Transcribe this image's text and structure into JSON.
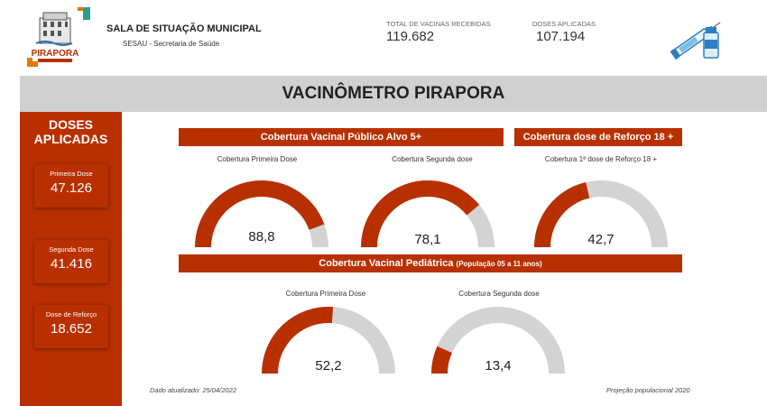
{
  "header": {
    "org_title": "SALA DE SITUAÇÃO MUNICIPAL",
    "org_sub": "SESAU - Secretaria de Saúde",
    "logo_text": "PIRAPORA",
    "total_label": "TOTAL DE VACINAS RECEBIDAS",
    "total_value": "119.682",
    "applied_label": "DOSES APLICADAS",
    "applied_value": "107.194"
  },
  "banner": {
    "title": "VACINÔMETRO PIRAPORA"
  },
  "sidebar": {
    "title_line1": "DOSES",
    "title_line2": "APLICADAS",
    "cards": [
      {
        "label": "Primeira Dose",
        "value": "47.126"
      },
      {
        "label": "Segunda Dose",
        "value": "41.416"
      },
      {
        "label": "Dose de Reforço",
        "value": "18.652"
      }
    ]
  },
  "sections": {
    "target_title": "Cobertura Vacinal Público Alvo 5+",
    "booster_title": "Cobertura dose de Reforço 18 +",
    "pediatric_title": "Cobertura Vacinal Pediátrica",
    "pediatric_sub": "(População 05 a 11 anos)"
  },
  "gauges": [
    {
      "label": "Cobertura Primeira Dose",
      "value": "88,8",
      "percent": 88.8
    },
    {
      "label": "Cobertura Segunda dose",
      "value": "78,1",
      "percent": 78.1
    },
    {
      "label": "Cobertura 1ª dose de Reforço 18 +",
      "value": "42,7",
      "percent": 42.7
    },
    {
      "label": "Cobertura Primeira Dose",
      "value": "52,2",
      "percent": 52.2
    },
    {
      "label": "Cobertura Segunda dose",
      "value": "13,4",
      "percent": 13.4
    }
  ],
  "footer": {
    "updated": "Dado atualizado: 25/04/2022",
    "projection": "Projeção populacional 2020"
  },
  "colors": {
    "accent": "#b83000",
    "gauge_track": "#d3d3d3",
    "banner_bg": "#d0d0d0"
  }
}
